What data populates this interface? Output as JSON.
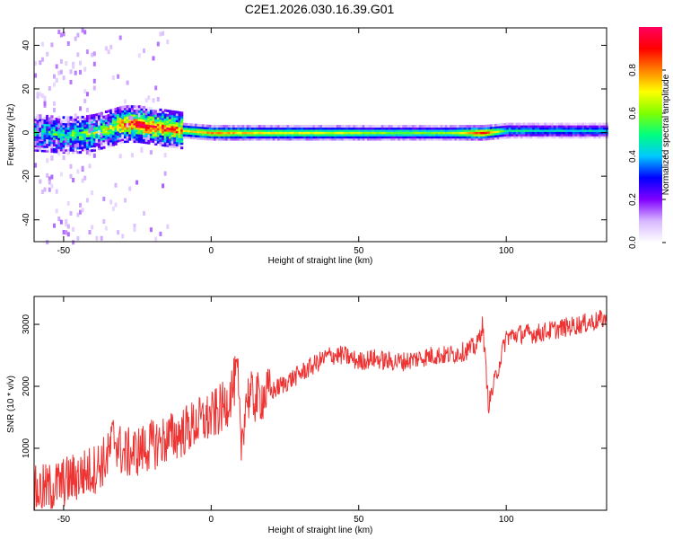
{
  "figure": {
    "title": "C2E1.2026.030.16.39.G01"
  },
  "chart_data": [
    {
      "type": "heatmap",
      "xlabel": "Height of straight line (km)",
      "ylabel": "Frequency (Hz)",
      "xlim": [
        -60,
        134
      ],
      "ylim": [
        -50,
        48
      ],
      "xticks": [
        -50,
        0,
        50,
        100
      ],
      "yticks": [
        -40,
        -20,
        0,
        20,
        40
      ],
      "grid": false,
      "colorbar": {
        "label": "Normalized spectral amplitude",
        "range": [
          0,
          1
        ],
        "ticks": [
          0.0,
          0.2,
          0.4,
          0.6,
          0.8
        ],
        "tick_labels": [
          "0.0",
          "0.2",
          "0.4",
          "0.6",
          "0.8"
        ],
        "colors": [
          "#ffffff",
          "#d7b8ff",
          "#8000ff",
          "#0000ff",
          "#00c8ff",
          "#00ff80",
          "#80ff00",
          "#ffff00",
          "#ff8000",
          "#ff0000",
          "#ff0060"
        ]
      },
      "ridge": {
        "x": [
          -60,
          -50,
          -45,
          -40,
          -35,
          -30,
          -25,
          -20,
          -15,
          -10,
          0,
          10,
          20,
          40,
          60,
          80,
          92,
          100,
          120,
          134
        ],
        "freq": [
          0,
          -1,
          -1,
          0,
          2,
          4,
          4,
          3,
          2,
          1,
          0,
          0,
          0,
          0,
          0,
          0,
          0,
          1,
          1,
          1
        ],
        "amplitude": [
          0.3,
          0.35,
          0.4,
          0.45,
          0.5,
          0.7,
          0.85,
          0.8,
          0.75,
          0.7,
          0.8,
          0.75,
          0.7,
          0.68,
          0.6,
          0.6,
          0.9,
          0.5,
          0.45,
          0.45
        ]
      }
    },
    {
      "type": "line",
      "xlabel": "Height of straight line (km)",
      "ylabel": "SNR (10 * v/v)",
      "xlim": [
        -60,
        134
      ],
      "ylim": [
        0,
        3450
      ],
      "xticks": [
        -50,
        0,
        50,
        100
      ],
      "yticks": [
        1000,
        2000,
        3000
      ],
      "grid": false,
      "color": "#ee3333",
      "series": [
        {
          "x": [
            -60,
            -55,
            -50,
            -45,
            -40,
            -35,
            -33,
            -30,
            -25,
            -20,
            -15,
            -10,
            -5,
            0,
            5,
            9,
            10,
            12,
            15,
            20,
            25,
            30,
            35,
            40,
            45,
            50,
            55,
            60,
            65,
            70,
            75,
            80,
            85,
            90,
            92,
            94,
            100,
            105,
            110,
            115,
            120,
            125,
            130,
            134
          ],
          "y": [
            300,
            350,
            450,
            550,
            650,
            850,
            1200,
            900,
            950,
            1050,
            1150,
            1250,
            1400,
            1500,
            1700,
            2200,
            1000,
            1850,
            1800,
            1900,
            2050,
            2200,
            2350,
            2500,
            2500,
            2400,
            2450,
            2400,
            2400,
            2450,
            2500,
            2500,
            2550,
            2650,
            3000,
            1700,
            2800,
            2850,
            2850,
            2900,
            2950,
            3000,
            3050,
            3100
          ]
        }
      ]
    }
  ]
}
